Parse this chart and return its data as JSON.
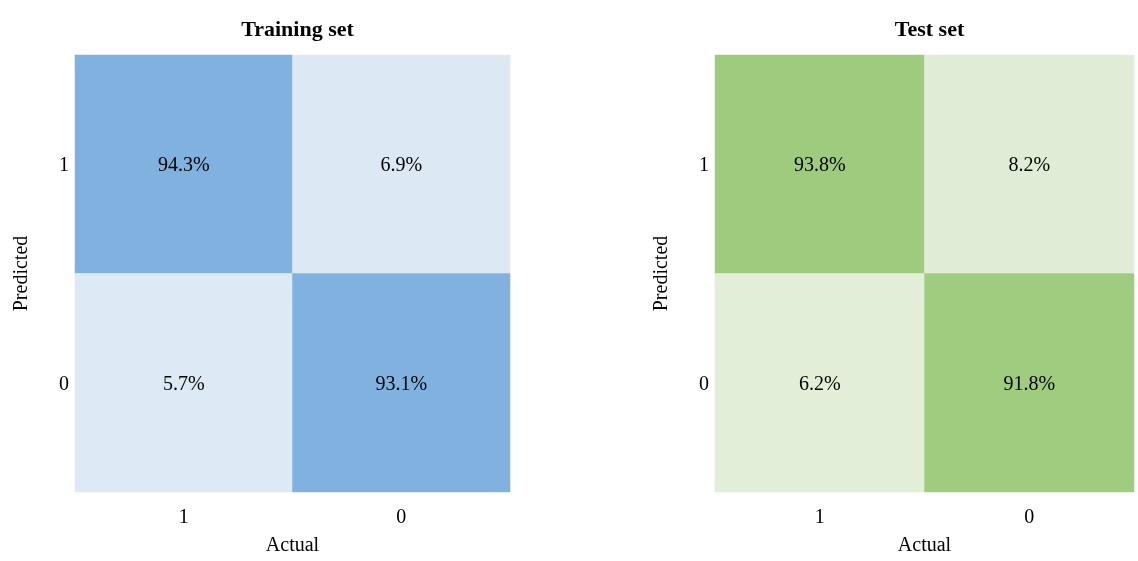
{
  "chart_data": [
    {
      "type": "heatmap",
      "title": "Training set",
      "xlabel": "Actual",
      "ylabel": "Predicted",
      "categories": [
        "1",
        "0"
      ],
      "y_categories": [
        "1",
        "0"
      ],
      "cells": [
        [
          94.3,
          6.9
        ],
        [
          5.7,
          93.1
        ]
      ],
      "cell_labels": [
        [
          "94.3%",
          "6.9%"
        ],
        [
          "5.7%",
          "93.1%"
        ]
      ],
      "colors": [
        "#ddeaf5",
        "#80b1df"
      ]
    },
    {
      "type": "heatmap",
      "title": "Test set",
      "xlabel": "Actual",
      "ylabel": "Predicted",
      "categories": [
        "1",
        "0"
      ],
      "y_categories": [
        "1",
        "0"
      ],
      "cells": [
        [
          93.8,
          8.2
        ],
        [
          6.2,
          91.8
        ]
      ],
      "cell_labels": [
        [
          "93.8%",
          "8.2%"
        ],
        [
          "6.2%",
          "91.8%"
        ]
      ],
      "colors": [
        "#e2eed8",
        "#9ecb7e"
      ]
    }
  ]
}
